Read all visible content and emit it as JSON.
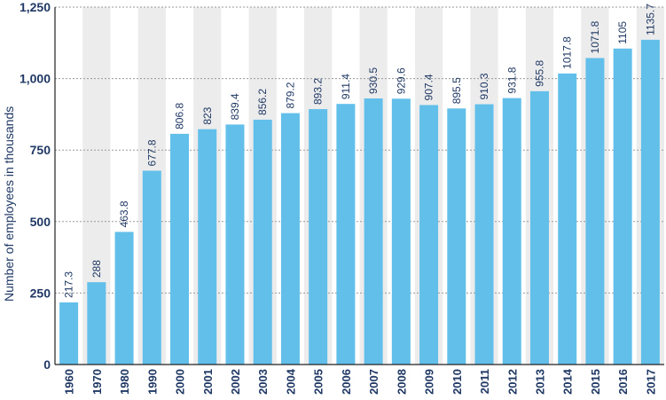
{
  "chart_data": {
    "type": "bar",
    "categories": [
      "1960",
      "1970",
      "1980",
      "1990",
      "2000",
      "2001",
      "2002",
      "2003",
      "2004",
      "2005",
      "2006",
      "2007",
      "2008",
      "2009",
      "2010",
      "2011",
      "2012",
      "2013",
      "2014",
      "2015",
      "2016",
      "2017"
    ],
    "values": [
      217.3,
      288,
      463.8,
      677.8,
      806.8,
      823,
      839.4,
      856.2,
      879.2,
      893.2,
      911.4,
      930.5,
      929.6,
      907.4,
      895.5,
      910.3,
      931.8,
      955.8,
      1017.8,
      1071.8,
      1105,
      1135.7
    ],
    "value_labels": [
      "217.3",
      "288",
      "463.8",
      "677.8",
      "806.8",
      "823",
      "839.4",
      "856.2",
      "879.2",
      "893.2",
      "911.4",
      "930.5",
      "929.6",
      "907.4",
      "895.5",
      "910.3",
      "931.8",
      "955.8",
      "1017.8",
      "1071.8",
      "1105",
      "1135.7"
    ],
    "ylabel": "Number of employees in thousands",
    "xlabel": "",
    "title": "",
    "ylim": [
      0,
      1250
    ],
    "yticks": [
      0,
      250,
      500,
      750,
      1000,
      1250
    ],
    "ytick_labels": [
      "0",
      "250",
      "500",
      "750",
      "1,000",
      "1,250"
    ],
    "grid": true,
    "alternating_column_shading": true,
    "colors": {
      "bar": "#62bfea",
      "text": "#1f3864",
      "shade": "#ececec",
      "grid": "#9a9a9a",
      "axis": "#222222"
    }
  }
}
